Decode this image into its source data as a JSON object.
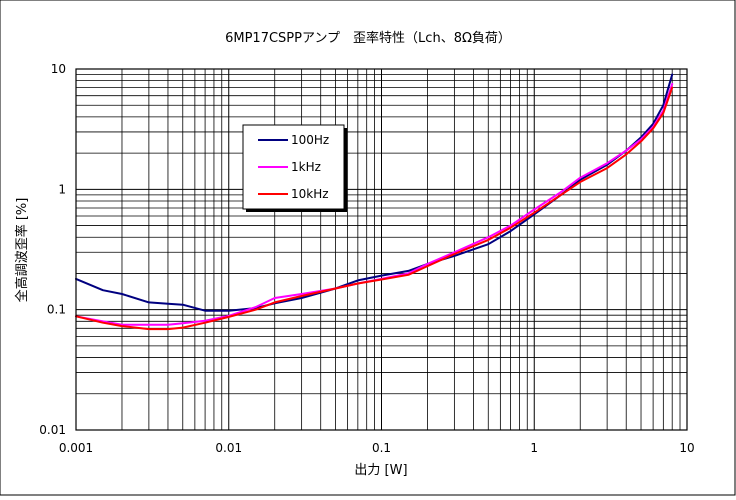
{
  "chart_data": {
    "type": "line",
    "title": "6MP17CSPPアンプ　歪率特性（Lch、8Ω負荷）",
    "xlabel": "出力 [W]",
    "ylabel": "全高調波歪率 [%]",
    "x_scale": "log",
    "y_scale": "log",
    "xlim": [
      0.001,
      10
    ],
    "ylim": [
      0.01,
      10
    ],
    "x_ticks": [
      "0.001",
      "0.01",
      "0.1",
      "1",
      "10"
    ],
    "y_ticks": [
      "0.01",
      "0.1",
      "1",
      "10"
    ],
    "grid": true,
    "legend_position": "upper-left-inset",
    "series": [
      {
        "name": "100Hz",
        "color": "#000080",
        "x": [
          0.001,
          0.0015,
          0.002,
          0.003,
          0.004,
          0.005,
          0.007,
          0.01,
          0.015,
          0.02,
          0.03,
          0.05,
          0.07,
          0.1,
          0.15,
          0.2,
          0.3,
          0.5,
          0.7,
          1,
          1.5,
          2,
          3,
          4,
          5,
          6,
          7,
          8
        ],
        "y": [
          0.18,
          0.145,
          0.135,
          0.115,
          0.112,
          0.11,
          0.098,
          0.098,
          0.103,
          0.113,
          0.125,
          0.15,
          0.175,
          0.192,
          0.21,
          0.24,
          0.28,
          0.35,
          0.45,
          0.62,
          0.9,
          1.2,
          1.6,
          2.1,
          2.7,
          3.5,
          5.0,
          9.0
        ]
      },
      {
        "name": "1kHz",
        "color": "#ff00ff",
        "x": [
          0.001,
          0.0015,
          0.002,
          0.003,
          0.004,
          0.005,
          0.007,
          0.01,
          0.015,
          0.02,
          0.03,
          0.05,
          0.07,
          0.1,
          0.15,
          0.2,
          0.3,
          0.5,
          0.7,
          1,
          1.5,
          2,
          3,
          4,
          5,
          6,
          7,
          8
        ],
        "y": [
          0.088,
          0.08,
          0.075,
          0.075,
          0.075,
          0.077,
          0.081,
          0.089,
          0.105,
          0.125,
          0.135,
          0.15,
          0.165,
          0.18,
          0.2,
          0.24,
          0.3,
          0.4,
          0.5,
          0.68,
          0.95,
          1.25,
          1.65,
          2.1,
          2.6,
          3.3,
          4.5,
          7.5
        ]
      },
      {
        "name": "10kHz",
        "color": "#ff0000",
        "x": [
          0.001,
          0.0015,
          0.002,
          0.003,
          0.004,
          0.005,
          0.007,
          0.01,
          0.015,
          0.02,
          0.03,
          0.05,
          0.07,
          0.1,
          0.15,
          0.2,
          0.3,
          0.5,
          0.7,
          1,
          1.5,
          2,
          3,
          4,
          5,
          6,
          7,
          8
        ],
        "y": [
          0.088,
          0.078,
          0.073,
          0.069,
          0.069,
          0.071,
          0.078,
          0.087,
          0.1,
          0.115,
          0.13,
          0.15,
          0.165,
          0.178,
          0.195,
          0.23,
          0.29,
          0.38,
          0.48,
          0.64,
          0.9,
          1.15,
          1.5,
          1.95,
          2.5,
          3.2,
          4.3,
          7.0
        ]
      }
    ]
  }
}
